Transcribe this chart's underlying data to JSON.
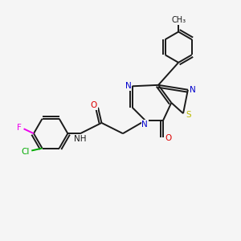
{
  "background_color": "#f5f5f5",
  "bond_color": "#1a1a1a",
  "heteroatom_colors": {
    "N": "#0000cc",
    "O": "#dd0000",
    "S": "#bbbb00",
    "F": "#ee00ee",
    "Cl": "#00aa00"
  },
  "figsize": [
    3.0,
    3.0
  ],
  "dpi": 100
}
